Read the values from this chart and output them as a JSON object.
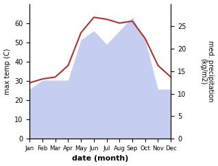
{
  "months": [
    "Jan",
    "Feb",
    "Mar",
    "Apr",
    "May",
    "Jun",
    "Jul",
    "Aug",
    "Sep",
    "Oct",
    "Nov",
    "Dec"
  ],
  "x": [
    1,
    2,
    3,
    4,
    5,
    6,
    7,
    8,
    9,
    10,
    11,
    12
  ],
  "temp": [
    29,
    31,
    32,
    38,
    55,
    63,
    62,
    60,
    61,
    52,
    38,
    32
  ],
  "precip": [
    11,
    13,
    13,
    13,
    22,
    24,
    21,
    24,
    27,
    22,
    11,
    11
  ],
  "temp_color": "#b03030",
  "precip_fill_color": "#c5cdf0",
  "temp_ylim": [
    0,
    70
  ],
  "precip_ylim": [
    0,
    30
  ],
  "temp_yticks": [
    0,
    10,
    20,
    30,
    40,
    50,
    60
  ],
  "precip_yticks": [
    0,
    5,
    10,
    15,
    20,
    25
  ],
  "xlabel": "date (month)",
  "ylabel_left": "max temp (C)",
  "ylabel_right": "med. precipitation\n(kg/m2)",
  "background_color": "#ffffff"
}
